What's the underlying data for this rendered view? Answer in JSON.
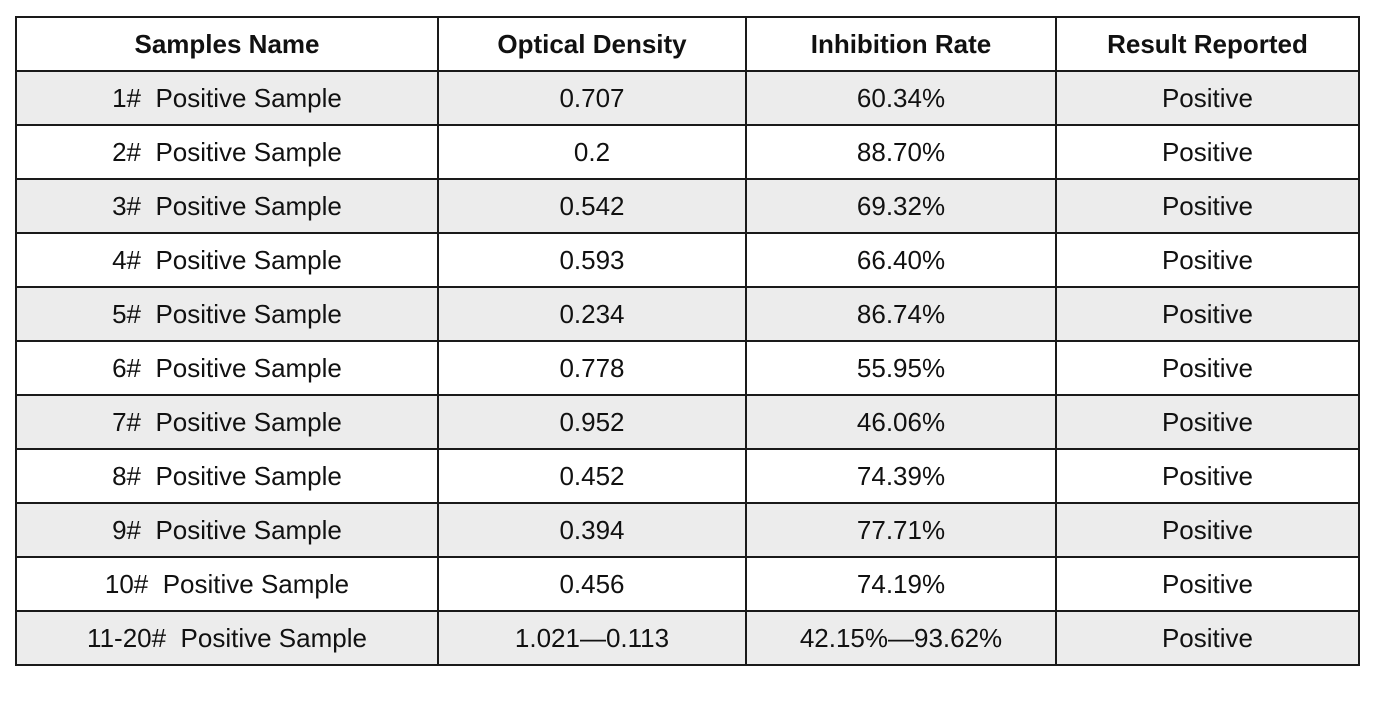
{
  "table": {
    "headers": [
      "Samples Name",
      "Optical Density",
      "Inhibition Rate",
      "Result Reported"
    ],
    "rows": [
      [
        "1#  Positive Sample",
        "0.707",
        "60.34%",
        "Positive"
      ],
      [
        "2#  Positive Sample",
        "0.2",
        "88.70%",
        "Positive"
      ],
      [
        "3#  Positive Sample",
        "0.542",
        "69.32%",
        "Positive"
      ],
      [
        "4#  Positive Sample",
        "0.593",
        "66.40%",
        "Positive"
      ],
      [
        "5#  Positive Sample",
        "0.234",
        "86.74%",
        "Positive"
      ],
      [
        "6#  Positive Sample",
        "0.778",
        "55.95%",
        "Positive"
      ],
      [
        "7#  Positive Sample",
        "0.952",
        "46.06%",
        "Positive"
      ],
      [
        "8#  Positive Sample",
        "0.452",
        "74.39%",
        "Positive"
      ],
      [
        "9#  Positive Sample",
        "0.394",
        "77.71%",
        "Positive"
      ],
      [
        "10#  Positive Sample",
        "0.456",
        "74.19%",
        "Positive"
      ],
      [
        "11-20#  Positive Sample",
        "1.021—0.113",
        "42.15%—93.62%",
        "Positive"
      ]
    ]
  },
  "colors": {
    "border": "#1a1a1a",
    "stripe": "#ececec",
    "background": "#ffffff",
    "text": "#111111"
  }
}
